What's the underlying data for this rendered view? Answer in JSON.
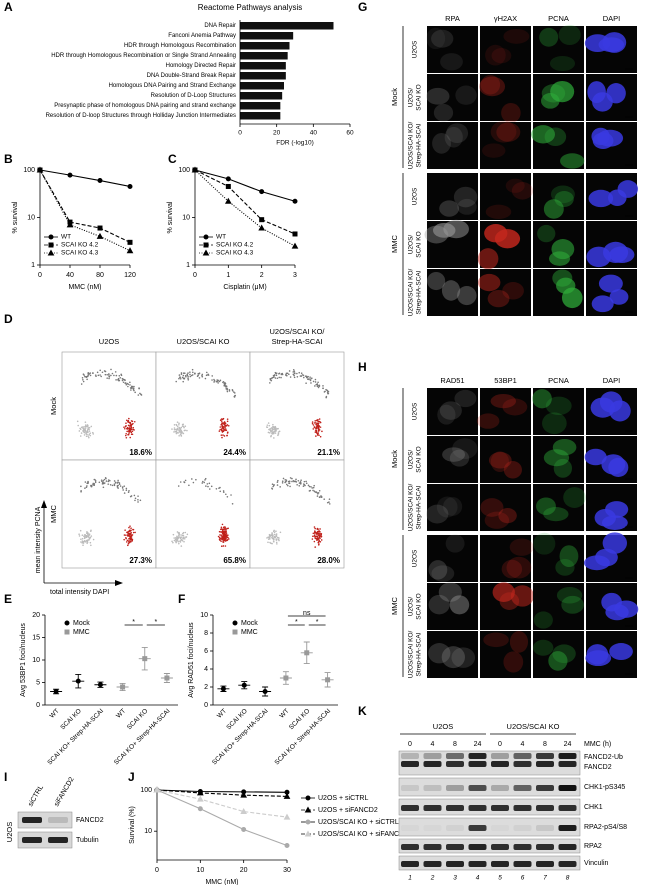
{
  "panel_labels": [
    "A",
    "B",
    "C",
    "D",
    "E",
    "F",
    "G",
    "H",
    "I",
    "J",
    "K"
  ],
  "chart_data": [
    {
      "type": "barh",
      "title": "Reactome Pathways analysis",
      "categories": [
        "DNA Repair",
        "Fanconi Anemia Pathway",
        "HDR through Homologous Recombination",
        "HDR through Homologous Recombination or Single Strand Annealing",
        "Homology Directed Repair",
        "DNA Double-Strand Break Repair",
        "Homologous DNA Pairing and Strand Exchange",
        "Resolution of D-Loop Structures",
        "Presynaptic phase of homologous DNA pairing and strand exchange",
        "Resolution of D-loop Structures through Holliday Junction Intermediates"
      ],
      "values": [
        51,
        29,
        27,
        26,
        25,
        25,
        24,
        23,
        22,
        22
      ],
      "color": "#111111",
      "xlabel": "FDR (-log10)",
      "xlim": [
        0,
        60
      ],
      "xticks": [
        0,
        20,
        40,
        60
      ]
    },
    {
      "type": "line",
      "x": [
        0,
        40,
        80,
        120
      ],
      "xlabel": "MMC (nM)",
      "ylabel": "% survival",
      "xlim": [
        0,
        120
      ],
      "xticks": [
        0,
        40,
        80,
        120
      ],
      "ylim": [
        1,
        100
      ],
      "yticks": [
        1,
        10,
        100
      ],
      "log_y": true,
      "legend": "lower left",
      "series": [
        {
          "name": "WT",
          "color": "#000000",
          "marker": "circle",
          "dash": "solid",
          "values": [
            100,
            78,
            60,
            45
          ]
        },
        {
          "name": "SCAI KO 4.2",
          "color": "#000000",
          "marker": "square",
          "dash": "dashed",
          "values": [
            100,
            8,
            6,
            3
          ]
        },
        {
          "name": "SCAI KO 4.3",
          "color": "#000000",
          "marker": "triangle",
          "dash": "dotted",
          "values": [
            100,
            7,
            4,
            2
          ]
        }
      ]
    },
    {
      "type": "line",
      "x": [
        0,
        1,
        2,
        3
      ],
      "xlabel": "Cisplatin (μM)",
      "ylabel": "% survival",
      "xlim": [
        0,
        3
      ],
      "xticks": [
        0,
        1,
        2,
        3
      ],
      "ylim": [
        1,
        100
      ],
      "yticks": [
        1,
        10,
        100
      ],
      "log_y": true,
      "legend": "lower left",
      "series": [
        {
          "name": "WT",
          "color": "#000000",
          "marker": "circle",
          "dash": "solid",
          "values": [
            100,
            65,
            35,
            22
          ]
        },
        {
          "name": "SCAI KO 4.2",
          "color": "#000000",
          "marker": "square",
          "dash": "dashed",
          "values": [
            100,
            45,
            9,
            4.5
          ]
        },
        {
          "name": "SCAI KO 4.3",
          "color": "#000000",
          "marker": "triangle",
          "dash": "dotted",
          "values": [
            100,
            22,
            6,
            2.5
          ]
        }
      ]
    },
    {
      "type": "dot",
      "ylabel": "Avg 53BP1 foci/nucleus",
      "categories": [
        "WT",
        "SCAI KO",
        "SCAI KO+ Strep-HA-SCAI",
        "WT",
        "SCAI KO",
        "SCAI KO+ Strep-HA-SCAI"
      ],
      "ylim": [
        0,
        20
      ],
      "yticks": [
        0,
        5,
        10,
        15,
        20
      ],
      "annotations": [
        "*",
        "*"
      ],
      "series": [
        {
          "name": "Mock",
          "color": "#000000",
          "marker": "circle",
          "values": [
            3,
            5.3,
            4.5,
            null,
            null,
            null
          ],
          "errors": [
            0.5,
            1.5,
            0.6,
            null,
            null,
            null
          ]
        },
        {
          "name": "MMC",
          "color": "#999999",
          "marker": "square",
          "values": [
            null,
            null,
            null,
            4,
            10.3,
            6
          ],
          "errors": [
            null,
            null,
            null,
            0.8,
            2.5,
            1
          ]
        }
      ]
    },
    {
      "type": "dot",
      "ylabel": "Avg RAD51 foci/nucleus",
      "categories": [
        "WT",
        "SCAI KO",
        "SCAI KO+ Strep-HA-SCAI",
        "WT",
        "SCAI KO",
        "SCAI KO+ Strep-HA-SCAI"
      ],
      "ylim": [
        0,
        10
      ],
      "yticks": [
        0,
        2,
        4,
        6,
        8,
        10
      ],
      "annotations": [
        "ns",
        "*",
        "*"
      ],
      "series": [
        {
          "name": "Mock",
          "color": "#000000",
          "marker": "circle",
          "values": [
            1.8,
            2.2,
            1.5,
            null,
            null,
            null
          ],
          "errors": [
            0.3,
            0.4,
            0.5,
            null,
            null,
            null
          ]
        },
        {
          "name": "MMC",
          "color": "#999999",
          "marker": "square",
          "values": [
            null,
            null,
            null,
            3,
            5.8,
            2.8
          ],
          "errors": [
            null,
            null,
            null,
            0.7,
            1.2,
            0.8
          ]
        }
      ]
    },
    {
      "type": "line",
      "x": [
        0,
        10,
        20,
        30
      ],
      "xlabel": "MMC (nM)",
      "ylabel": "Survival (%)",
      "xlim": [
        0,
        30
      ],
      "xticks": [
        0,
        10,
        20,
        30
      ],
      "ylim": [
        2,
        100
      ],
      "yticks": [
        10,
        100
      ],
      "log_y": true,
      "legend": "right",
      "series": [
        {
          "name": "U2OS + siCTRL",
          "color": "#000000",
          "marker": "circle",
          "dash": "solid",
          "values": [
            100,
            92,
            90,
            88
          ]
        },
        {
          "name": "U2OS + siFANCD2",
          "color": "#000000",
          "marker": "triangle",
          "dash": "dashed",
          "values": [
            100,
            85,
            75,
            70
          ]
        },
        {
          "name": "U2OS/SCAI KO + siCTRL",
          "color": "#aaaaaa",
          "marker": "circle",
          "dash": "solid",
          "values": [
            100,
            35,
            11,
            4.5
          ]
        },
        {
          "name": "U2OS/SCAI KO + siFANCD2",
          "color": "#cccccc",
          "marker": "triangle",
          "dash": "dashed",
          "values": [
            100,
            60,
            30,
            22
          ]
        }
      ]
    }
  ],
  "flow": {
    "columns": [
      [
        "U2OS"
      ],
      [
        "U2OS/SCAI KO"
      ],
      [
        "U2OS/SCAI KO/",
        "Strep-HA-SCAI"
      ]
    ],
    "rows": [
      "Mock",
      "MMC"
    ],
    "percentages": [
      [
        "18.6%",
        "24.4%",
        "21.1%"
      ],
      [
        "27.3%",
        "65.8%",
        "28.0%"
      ]
    ],
    "y_axis": "mean intensity PCNA",
    "x_axis": "total intensity DAPI"
  },
  "if_rpa": {
    "columns": [
      "RPA",
      "γH2AX",
      "PCNA",
      "DAPI"
    ],
    "groups": [
      "Mock",
      "MMC"
    ],
    "row_labels": [
      [
        "U2OS"
      ],
      [
        "U2OS/",
        "SCAI KO"
      ],
      [
        "U2OS/SCAI KO/",
        "Strep-HA-SCAI"
      ],
      [
        "U2OS"
      ],
      [
        "U2OS/",
        "SCAI KO"
      ],
      [
        "U2OS/SCAI KO/",
        "Strep-HA-SCAI"
      ]
    ]
  },
  "if_rad51": {
    "columns": [
      "RAD51",
      "53BP1",
      "PCNA",
      "DAPI"
    ],
    "groups": [
      "Mock",
      "MMC"
    ],
    "row_labels": [
      [
        "U2OS"
      ],
      [
        "U2OS/",
        "SCAI KO"
      ],
      [
        "U2OS/SCAI KO/",
        "Strep-HA-SCAI"
      ],
      [
        "U2OS"
      ],
      [
        "U2OS/",
        "SCAI KO"
      ],
      [
        "U2OS/SCAI KO/",
        "Strep-HA-SCAI"
      ]
    ]
  },
  "blot_i": {
    "lanes": [
      "siCTRL",
      "siFANCD2"
    ],
    "cell_line": "U2OS",
    "proteins": [
      "FANCD2",
      "Tubulin"
    ]
  },
  "blot_k": {
    "groups": [
      "U2OS",
      "U2OS/SCAI KO"
    ],
    "time_label": "MMC (h)",
    "times": [
      0,
      4,
      8,
      24,
      0,
      4,
      8,
      24
    ],
    "proteins": [
      "FANCD2-Ub",
      "FANCD2",
      "CHK1-pS345",
      "CHK1",
      "RPA2-pS4/S8",
      "RPA2",
      "Vinculin"
    ],
    "lanes": [
      1,
      2,
      3,
      4,
      5,
      6,
      7,
      8
    ]
  }
}
